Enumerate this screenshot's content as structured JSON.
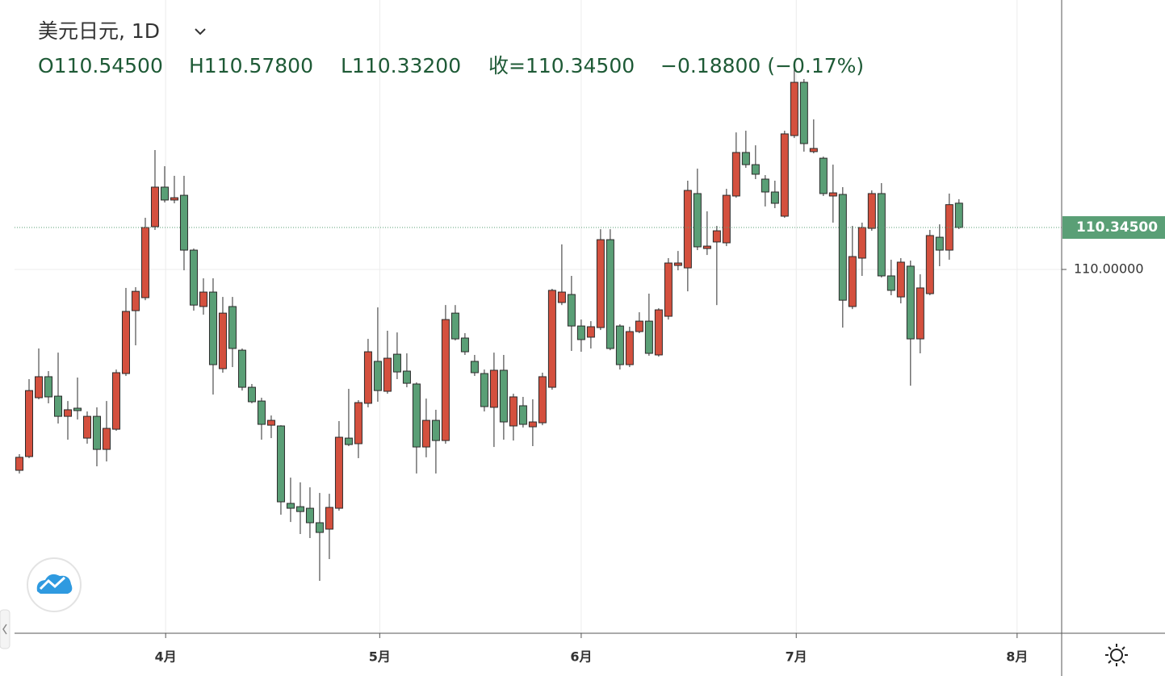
{
  "chart_data": {
    "type": "candlestick",
    "header": {
      "symbol": "美元日元, 1D",
      "open": "O110.54500",
      "high": "H110.57800",
      "low": "L110.33200",
      "close": "收=110.34500",
      "change": "−0.18800 (−0.17%)"
    },
    "categories": [
      null,
      null,
      null,
      null,
      null,
      null,
      null,
      null,
      null,
      null,
      null,
      null,
      null,
      null,
      null,
      null,
      null,
      null,
      null,
      null,
      null,
      null,
      null,
      null,
      null,
      null,
      null,
      null,
      null,
      null,
      null,
      null,
      null,
      null,
      null,
      null,
      null,
      null,
      null,
      null,
      null,
      null,
      null,
      null,
      null,
      null,
      null,
      null,
      null,
      null,
      null,
      null,
      null,
      null,
      null,
      null,
      null,
      null,
      null,
      null,
      null,
      null,
      null,
      null,
      null,
      null,
      null,
      null,
      null,
      null,
      null,
      null,
      null,
      null,
      null,
      null,
      null,
      null,
      null,
      null,
      null,
      null,
      null,
      null,
      null,
      null,
      null,
      null,
      null,
      null,
      null,
      null,
      null,
      null,
      null,
      null,
      null,
      null
    ],
    "open": [
      108.348,
      108.461,
      108.945,
      109.118,
      108.958,
      108.792,
      108.859,
      108.613,
      108.792,
      108.52,
      108.686,
      109.144,
      109.661,
      109.768,
      110.352,
      110.677,
      110.571,
      110.61,
      110.159,
      109.695,
      109.814,
      109.184,
      109.695,
      109.336,
      109.031,
      108.918,
      108.719,
      108.713,
      108.076,
      108.049,
      108.036,
      107.917,
      107.864,
      108.036,
      108.613,
      108.567,
      108.899,
      109.244,
      108.998,
      109.303,
      109.164,
      109.058,
      108.54,
      108.759,
      108.593,
      109.641,
      109.436,
      109.244,
      109.144,
      108.866,
      109.171,
      108.713,
      108.879,
      108.706,
      108.739,
      109.031,
      109.728,
      109.794,
      109.535,
      109.443,
      109.522,
      110.245,
      109.535,
      109.217,
      109.489,
      109.575,
      109.297,
      109.615,
      110.033,
      110.013,
      110.624,
      110.172,
      110.226,
      110.219,
      110.604,
      110.962,
      110.862,
      110.743,
      110.637,
      110.438,
      111.101,
      111.539,
      110.969,
      110.915,
      110.604,
      110.617,
      109.695,
      110.093,
      110.338,
      110.624,
      109.947,
      109.774,
      110.027,
      109.429,
      109.801,
      110.265,
      110.159,
      110.545
    ],
    "high": [
      108.481,
      109.098,
      109.35,
      109.164,
      109.316,
      108.918,
      109.111,
      108.832,
      108.866,
      108.918,
      109.177,
      109.848,
      109.854,
      110.425,
      110.982,
      110.849,
      110.77,
      110.77,
      110.172,
      109.927,
      109.927,
      109.774,
      109.774,
      109.35,
      109.058,
      108.945,
      108.799,
      108.719,
      108.288,
      108.249,
      108.208,
      108.162,
      108.155,
      108.753,
      109.018,
      108.925,
      109.429,
      109.688,
      109.496,
      109.482,
      109.31,
      109.071,
      108.938,
      108.846,
      109.707,
      109.707,
      109.476,
      109.297,
      109.177,
      109.316,
      109.297,
      108.978,
      108.952,
      108.932,
      109.151,
      109.841,
      110.206,
      109.947,
      109.588,
      109.575,
      110.331,
      110.331,
      109.549,
      109.529,
      109.648,
      109.801,
      109.681,
      110.093,
      110.152,
      110.73,
      110.829,
      110.478,
      110.358,
      110.663,
      111.127,
      111.141,
      111.021,
      110.776,
      110.73,
      111.141,
      111.645,
      111.566,
      111.234,
      110.928,
      110.862,
      110.677,
      110.358,
      110.385,
      110.65,
      110.71,
      110.08,
      110.093,
      110.073,
      109.96,
      110.325,
      110.371,
      110.624,
      110.578
    ],
    "low": [
      108.322,
      108.448,
      108.932,
      108.899,
      108.733,
      108.6,
      108.766,
      108.567,
      108.381,
      108.421,
      108.673,
      109.124,
      109.376,
      109.747,
      110.325,
      110.551,
      110.544,
      109.993,
      109.661,
      109.628,
      108.971,
      109.151,
      109.197,
      109.004,
      108.899,
      108.6,
      108.613,
      107.983,
      107.923,
      107.824,
      107.791,
      107.439,
      107.618,
      108.016,
      108.547,
      108.448,
      108.866,
      108.912,
      108.978,
      109.098,
      109.031,
      108.322,
      108.455,
      108.322,
      108.567,
      109.416,
      109.297,
      109.124,
      108.832,
      108.54,
      108.6,
      108.593,
      108.7,
      108.547,
      108.719,
      109.011,
      109.707,
      109.33,
      109.323,
      109.35,
      109.502,
      109.336,
      109.177,
      109.197,
      109.476,
      109.29,
      109.283,
      109.588,
      109.993,
      109.82,
      110.159,
      110.119,
      109.707,
      110.192,
      110.59,
      110.836,
      110.743,
      110.518,
      110.504,
      110.425,
      111.081,
      110.969,
      110.955,
      110.604,
      110.385,
      109.522,
      109.674,
      109.947,
      110.318,
      109.934,
      109.788,
      109.721,
      109.044,
      109.31,
      109.788,
      110.027,
      110.08,
      110.332
    ],
    "close": [
      108.455,
      109.004,
      109.118,
      108.952,
      108.792,
      108.846,
      108.839,
      108.792,
      108.52,
      108.693,
      109.151,
      109.655,
      109.82,
      110.345,
      110.677,
      110.571,
      110.59,
      110.159,
      109.707,
      109.814,
      109.217,
      109.641,
      109.35,
      109.031,
      108.912,
      108.726,
      108.759,
      108.089,
      108.036,
      108.009,
      107.917,
      107.837,
      108.043,
      108.62,
      108.56,
      108.905,
      109.323,
      109.004,
      109.27,
      109.157,
      109.064,
      108.54,
      108.759,
      108.593,
      109.588,
      109.429,
      109.323,
      109.151,
      108.872,
      109.171,
      108.746,
      108.952,
      108.726,
      108.746,
      109.118,
      109.828,
      109.814,
      109.535,
      109.423,
      109.529,
      110.245,
      109.35,
      109.217,
      109.489,
      109.575,
      109.31,
      109.668,
      110.053,
      110.053,
      110.65,
      110.186,
      110.192,
      110.318,
      110.61,
      110.962,
      110.862,
      110.783,
      110.637,
      110.544,
      111.115,
      111.539,
      111.035,
      110.995,
      110.624,
      110.63,
      109.747,
      110.106,
      110.345,
      110.624,
      109.947,
      109.828,
      110.06,
      109.429,
      109.848,
      110.279,
      110.159,
      110.533,
      110.345
    ],
    "up_color": "#d4503e",
    "down_color": "#5a9f76",
    "last_price_label": "110.34500",
    "last_price_color": "#5a9f76",
    "xlim": [
      -0.5,
      107.6
    ],
    "xticks": [
      {
        "value": 15.1,
        "label": "4月"
      },
      {
        "value": 37.2,
        "label": "5月"
      },
      {
        "value": 58,
        "label": "6月"
      },
      {
        "value": 80.2,
        "label": "7月"
      },
      {
        "value": 103,
        "label": "8月"
      }
    ],
    "ylim": [
      107.008,
      112.216
    ],
    "yticks": [
      {
        "value": 110,
        "label": "110.00000"
      }
    ],
    "grid": true
  }
}
